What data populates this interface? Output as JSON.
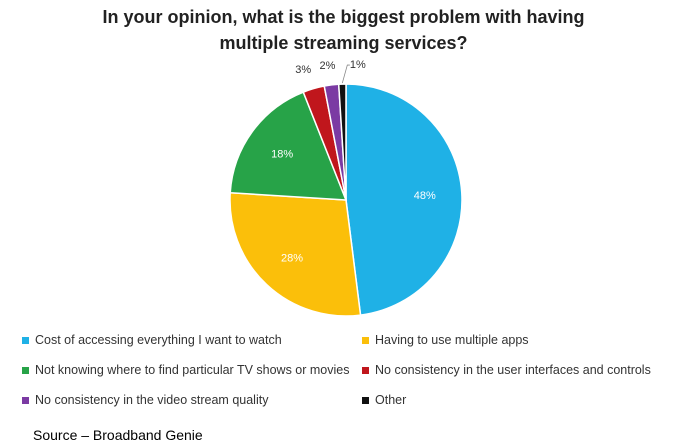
{
  "chart_data": {
    "type": "pie",
    "title_lines": [
      "In your opinion, what is the biggest problem with having",
      "multiple streaming services?"
    ],
    "slices": [
      {
        "label": "Cost of accessing everything I want to watch",
        "value": 48,
        "value_label": "48%",
        "color": "#1fb1e6"
      },
      {
        "label": "Having to use multiple apps",
        "value": 28,
        "value_label": "28%",
        "color": "#fbbf0a"
      },
      {
        "label": "Not knowing where to find particular TV shows or movies",
        "value": 18,
        "value_label": "18%",
        "color": "#27a348"
      },
      {
        "label": "No consistency in the user interfaces and controls",
        "value": 3,
        "value_label": "3%",
        "color": "#c0161c"
      },
      {
        "label": "No consistency in the video stream quality",
        "value": 2,
        "value_label": "2%",
        "color": "#7b3aa3"
      },
      {
        "label": "Other",
        "value": 1,
        "value_label": "1%",
        "color": "#111111"
      }
    ],
    "legend_position": "bottom"
  },
  "source": "Source – Broadband Genie"
}
